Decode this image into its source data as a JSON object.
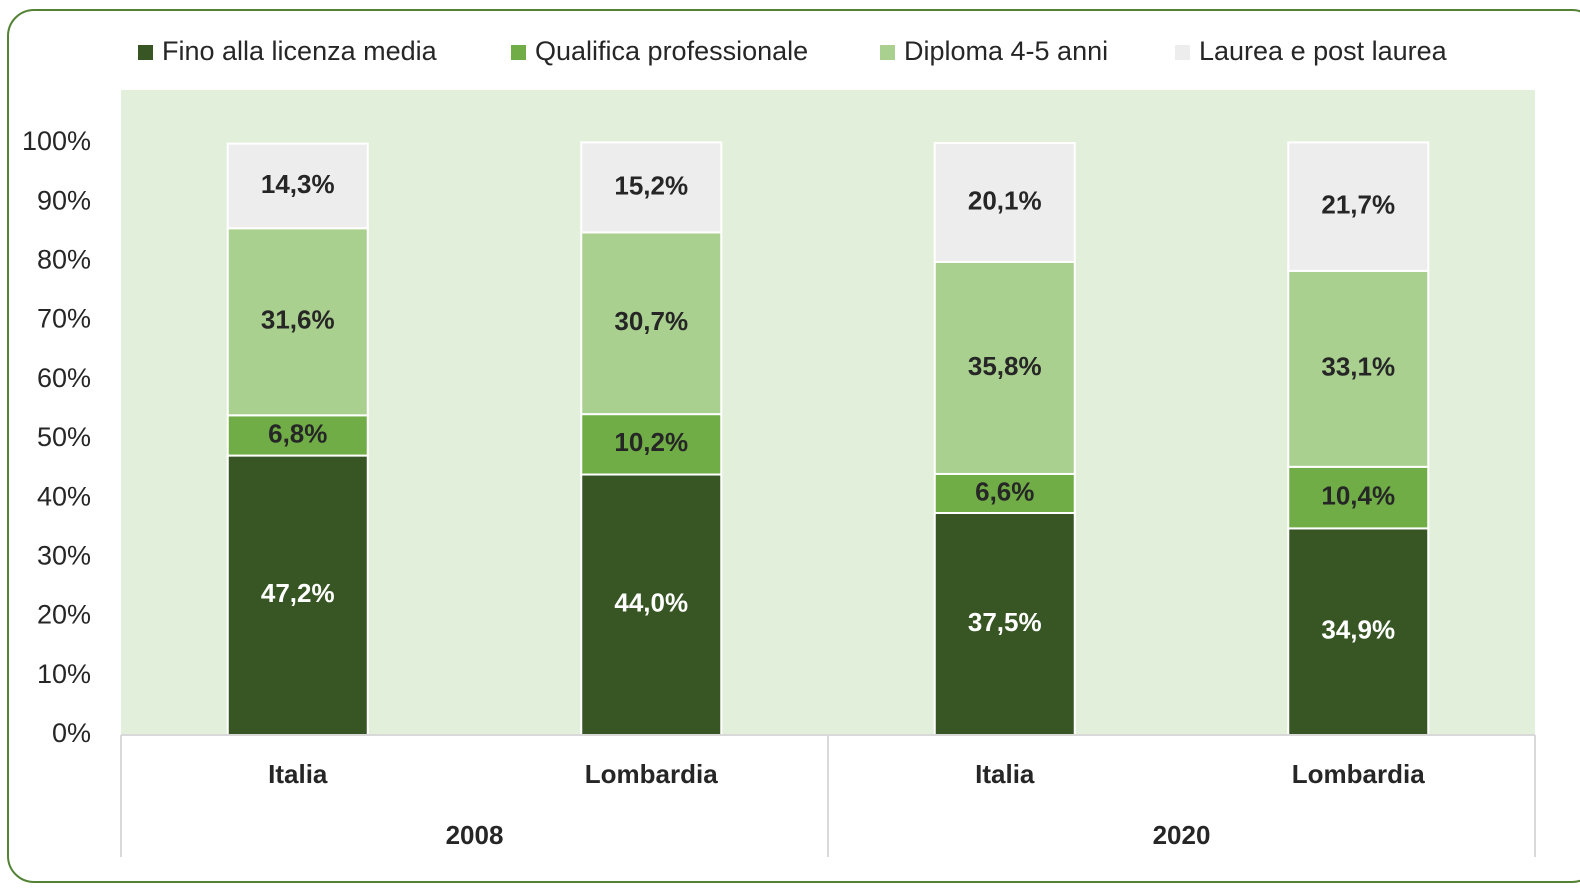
{
  "chart_data": {
    "type": "stacked_bar",
    "categories": [
      "Italia",
      "Lombardia",
      "Italia",
      "Lombardia"
    ],
    "groups": [
      "2008",
      "2020"
    ],
    "series": [
      {
        "name": "Fino alla licenza media",
        "color": "#375623",
        "values": [
          47.2,
          44.0,
          37.5,
          34.9
        ],
        "value_labels": [
          "47,2%",
          "44,0%",
          "37,5%",
          "34,9%"
        ]
      },
      {
        "name": "Qualifica professionale",
        "color": "#70ad47",
        "values": [
          6.8,
          10.2,
          6.6,
          10.4
        ],
        "value_labels": [
          "6,8%",
          "10,2%",
          "6,6%",
          "10,4%"
        ]
      },
      {
        "name": "Diploma 4-5 anni",
        "color": "#a9d08e",
        "values": [
          31.6,
          30.7,
          35.8,
          33.1
        ],
        "value_labels": [
          "31,6%",
          "30,7%",
          "35,8%",
          "33,1%"
        ]
      },
      {
        "name": "Laurea e post laurea",
        "color": "#ededed",
        "values": [
          14.3,
          15.2,
          20.1,
          21.7
        ],
        "value_labels": [
          "14,3%",
          "15,2%",
          "20,1%",
          "21,7%"
        ]
      }
    ],
    "ylim": [
      0,
      100
    ],
    "yticks": [
      {
        "value": 0,
        "label": "0%"
      },
      {
        "value": 10,
        "label": "10%"
      },
      {
        "value": 20,
        "label": "20%"
      },
      {
        "value": 30,
        "label": "30%"
      },
      {
        "value": 40,
        "label": "40%"
      },
      {
        "value": 50,
        "label": "50%"
      },
      {
        "value": 60,
        "label": "60%"
      },
      {
        "value": 70,
        "label": "70%"
      },
      {
        "value": 80,
        "label": "80%"
      },
      {
        "value": 90,
        "label": "90%"
      },
      {
        "value": 100,
        "label": "100%"
      }
    ],
    "legend": "top",
    "plot_background": "#e2efda"
  }
}
